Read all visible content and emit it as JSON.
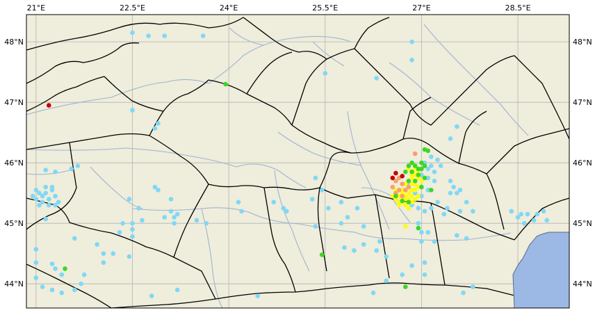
{
  "map": {
    "land_color": "#efeddb",
    "sea_color": "#9cb8e4",
    "river_color": "#9db4d2",
    "border_color": "#000000",
    "coast_color": "#5a6a88",
    "grid_color": "#b4b4b4",
    "lon_range": [
      20.85,
      29.3
    ],
    "lat_range": [
      43.6,
      48.45
    ],
    "lon_ticks": [
      21,
      22.5,
      24,
      25.5,
      27,
      28.5
    ],
    "lat_ticks": [
      44,
      45,
      46,
      47,
      48
    ],
    "lon_labels": [
      "21°E",
      "22.5°E",
      "24°E",
      "25.5°E",
      "27°E",
      "28.5°E"
    ],
    "lat_labels": [
      "44°N",
      "45°N",
      "46°N",
      "47°N",
      "48°N"
    ]
  },
  "legend_colors": {
    "cyan": "#7fd8f7",
    "green": "#3cd626",
    "yellow": "#fffb11",
    "orange": "#f7a070",
    "red": "#c80000"
  },
  "points": {
    "cyan": [
      [
        22.5,
        48.15
      ],
      [
        22.75,
        48.1
      ],
      [
        23.0,
        48.1
      ],
      [
        23.6,
        48.1
      ],
      [
        25.5,
        47.48
      ],
      [
        26.3,
        47.4
      ],
      [
        26.85,
        48.0
      ],
      [
        26.85,
        47.7
      ],
      [
        22.5,
        46.87
      ],
      [
        22.9,
        46.65
      ],
      [
        22.85,
        46.57
      ],
      [
        21.0,
        45.55
      ],
      [
        21.05,
        45.5
      ],
      [
        21.1,
        45.45
      ],
      [
        21.15,
        45.5
      ],
      [
        21.2,
        45.4
      ],
      [
        21.1,
        45.35
      ],
      [
        21.0,
        45.4
      ],
      [
        21.25,
        45.55
      ],
      [
        21.3,
        45.45
      ],
      [
        21.05,
        45.3
      ],
      [
        21.2,
        45.3
      ],
      [
        21.35,
        45.35
      ],
      [
        21.15,
        45.6
      ],
      [
        20.95,
        45.45
      ],
      [
        21.25,
        45.6
      ],
      [
        21.3,
        45.3
      ],
      [
        21.15,
        45.88
      ],
      [
        21.3,
        45.85
      ],
      [
        21.55,
        45.9
      ],
      [
        21.65,
        45.95
      ],
      [
        21.15,
        45.07
      ],
      [
        21.0,
        44.57
      ],
      [
        21.0,
        44.35
      ],
      [
        21.25,
        44.33
      ],
      [
        21.3,
        44.25
      ],
      [
        21.4,
        44.15
      ],
      [
        21.0,
        44.1
      ],
      [
        21.1,
        43.95
      ],
      [
        21.25,
        43.9
      ],
      [
        21.4,
        43.85
      ],
      [
        21.6,
        43.9
      ],
      [
        21.75,
        44.15
      ],
      [
        21.7,
        44.0
      ],
      [
        22.05,
        44.35
      ],
      [
        22.2,
        44.5
      ],
      [
        21.95,
        44.65
      ],
      [
        22.05,
        44.5
      ],
      [
        21.6,
        44.75
      ],
      [
        22.3,
        44.85
      ],
      [
        22.5,
        44.9
      ],
      [
        22.5,
        44.78
      ],
      [
        22.45,
        44.45
      ],
      [
        22.35,
        45.0
      ],
      [
        22.5,
        45.0
      ],
      [
        22.65,
        45.05
      ],
      [
        22.6,
        45.25
      ],
      [
        22.45,
        45.4
      ],
      [
        22.85,
        45.6
      ],
      [
        22.9,
        45.55
      ],
      [
        23.1,
        45.4
      ],
      [
        23.1,
        45.2
      ],
      [
        23.0,
        45.1
      ],
      [
        23.15,
        45.1
      ],
      [
        23.15,
        45.0
      ],
      [
        23.2,
        45.15
      ],
      [
        23.5,
        45.05
      ],
      [
        23.65,
        45.0
      ],
      [
        24.15,
        45.35
      ],
      [
        24.2,
        45.2
      ],
      [
        24.7,
        45.35
      ],
      [
        24.85,
        45.25
      ],
      [
        24.9,
        45.2
      ],
      [
        25.45,
        45.55
      ],
      [
        25.35,
        45.75
      ],
      [
        25.55,
        45.25
      ],
      [
        25.3,
        45.4
      ],
      [
        25.35,
        44.95
      ],
      [
        25.75,
        45.35
      ],
      [
        25.75,
        45.0
      ],
      [
        25.85,
        45.1
      ],
      [
        26.0,
        45.25
      ],
      [
        26.1,
        44.95
      ],
      [
        25.8,
        44.6
      ],
      [
        25.95,
        44.55
      ],
      [
        26.1,
        44.65
      ],
      [
        26.3,
        44.55
      ],
      [
        26.35,
        44.7
      ],
      [
        26.45,
        44.45
      ],
      [
        26.6,
        45.4
      ],
      [
        26.6,
        45.5
      ],
      [
        26.8,
        45.65
      ],
      [
        26.9,
        45.5
      ],
      [
        27.0,
        45.45
      ],
      [
        27.1,
        45.55
      ],
      [
        26.85,
        45.3
      ],
      [
        26.95,
        45.25
      ],
      [
        27.05,
        45.2
      ],
      [
        27.15,
        45.25
      ],
      [
        27.25,
        45.35
      ],
      [
        26.95,
        45.0
      ],
      [
        27.0,
        44.85
      ],
      [
        27.0,
        44.7
      ],
      [
        27.2,
        44.7
      ],
      [
        27.1,
        44.85
      ],
      [
        27.0,
        45.8
      ],
      [
        27.1,
        45.9
      ],
      [
        27.2,
        45.85
      ],
      [
        27.15,
        45.95
      ],
      [
        27.05,
        46.0
      ],
      [
        27.15,
        46.1
      ],
      [
        27.25,
        46.05
      ],
      [
        27.3,
        45.95
      ],
      [
        27.1,
        45.75
      ],
      [
        27.2,
        45.7
      ],
      [
        27.45,
        45.7
      ],
      [
        27.5,
        45.6
      ],
      [
        27.6,
        45.55
      ],
      [
        27.45,
        45.5
      ],
      [
        27.55,
        45.5
      ],
      [
        27.4,
        45.25
      ],
      [
        27.7,
        45.35
      ],
      [
        27.6,
        45.2
      ],
      [
        27.8,
        45.2
      ],
      [
        27.35,
        45.15
      ],
      [
        27.55,
        44.8
      ],
      [
        27.7,
        44.75
      ],
      [
        27.55,
        46.6
      ],
      [
        27.45,
        46.4
      ],
      [
        27.05,
        44.35
      ],
      [
        27.05,
        44.15
      ],
      [
        26.85,
        44.3
      ],
      [
        26.7,
        44.15
      ],
      [
        28.4,
        45.2
      ],
      [
        28.5,
        45.1
      ],
      [
        28.6,
        45.0
      ],
      [
        28.55,
        45.15
      ],
      [
        28.65,
        45.15
      ],
      [
        28.75,
        45.05
      ],
      [
        28.8,
        45.15
      ],
      [
        28.9,
        45.2
      ],
      [
        28.95,
        45.05
      ],
      [
        22.8,
        43.8
      ],
      [
        23.2,
        43.9
      ],
      [
        24.45,
        43.8
      ],
      [
        26.25,
        43.85
      ],
      [
        27.65,
        43.85
      ],
      [
        27.8,
        43.95
      ],
      [
        26.45,
        44.05
      ]
    ],
    "green": [
      [
        23.95,
        47.3
      ],
      [
        21.45,
        44.25
      ],
      [
        25.45,
        44.48
      ],
      [
        26.75,
        43.95
      ],
      [
        26.95,
        44.92
      ],
      [
        26.6,
        45.45
      ],
      [
        26.7,
        45.37
      ],
      [
        26.8,
        45.35
      ],
      [
        27.0,
        45.6
      ],
      [
        27.15,
        45.55
      ],
      [
        27.05,
        46.22
      ],
      [
        27.1,
        46.2
      ],
      [
        26.85,
        45.85
      ],
      [
        26.9,
        45.95
      ],
      [
        26.95,
        45.8
      ],
      [
        27.0,
        45.9
      ],
      [
        26.8,
        45.7
      ],
      [
        27.05,
        45.75
      ],
      [
        26.9,
        45.7
      ],
      [
        26.95,
        45.9
      ],
      [
        26.75,
        45.85
      ],
      [
        27.0,
        46.0
      ],
      [
        26.85,
        46.0
      ],
      [
        26.8,
        45.95
      ],
      [
        27.05,
        45.95
      ]
    ],
    "yellow": [
      [
        26.8,
        45.5
      ],
      [
        26.85,
        45.45
      ],
      [
        26.75,
        45.4
      ],
      [
        26.7,
        45.5
      ],
      [
        26.65,
        45.45
      ],
      [
        26.6,
        45.4
      ],
      [
        26.65,
        45.35
      ],
      [
        26.75,
        45.3
      ],
      [
        26.85,
        45.35
      ],
      [
        26.9,
        45.4
      ],
      [
        26.95,
        45.45
      ],
      [
        26.7,
        45.55
      ],
      [
        26.8,
        45.6
      ],
      [
        26.9,
        45.55
      ],
      [
        26.6,
        45.55
      ],
      [
        26.55,
        45.45
      ],
      [
        26.7,
        45.4
      ],
      [
        26.8,
        45.4
      ],
      [
        26.95,
        45.6
      ],
      [
        26.85,
        45.65
      ],
      [
        26.95,
        45.75
      ],
      [
        26.9,
        45.8
      ],
      [
        26.85,
        45.75
      ],
      [
        26.95,
        45.85
      ],
      [
        26.85,
        45.8
      ],
      [
        27.0,
        45.7
      ],
      [
        26.9,
        45.65
      ],
      [
        26.75,
        45.45
      ],
      [
        26.85,
        45.55
      ],
      [
        26.8,
        45.9
      ],
      [
        26.9,
        45.9
      ],
      [
        26.75,
        45.65
      ],
      [
        26.7,
        45.35
      ],
      [
        26.65,
        45.3
      ],
      [
        26.8,
        45.25
      ],
      [
        26.75,
        44.95
      ]
    ],
    "orange": [
      [
        26.65,
        45.55
      ],
      [
        26.7,
        45.65
      ],
      [
        26.75,
        45.55
      ],
      [
        26.6,
        45.5
      ],
      [
        26.8,
        45.6
      ],
      [
        26.55,
        45.6
      ],
      [
        26.65,
        45.75
      ],
      [
        26.7,
        45.45
      ],
      [
        26.9,
        46.15
      ],
      [
        26.6,
        45.7
      ]
    ],
    "red": [
      [
        21.2,
        46.95
      ],
      [
        26.55,
        45.75
      ],
      [
        26.6,
        45.83
      ],
      [
        26.7,
        45.78
      ]
    ]
  }
}
